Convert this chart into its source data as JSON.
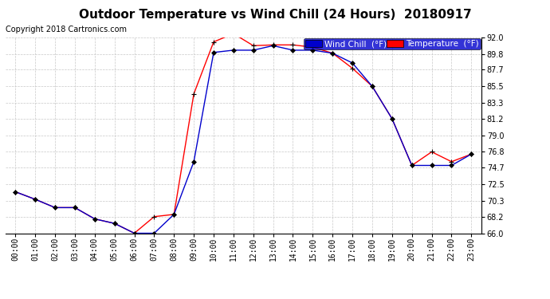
{
  "title": "Outdoor Temperature vs Wind Chill (24 Hours)  20180917",
  "copyright": "Copyright 2018 Cartronics.com",
  "legend_wind_chill": "Wind Chill  (°F)",
  "legend_temperature": "Temperature  (°F)",
  "x_labels": [
    "00:00",
    "01:00",
    "02:00",
    "03:00",
    "04:00",
    "05:00",
    "06:00",
    "07:00",
    "08:00",
    "09:00",
    "10:00",
    "11:00",
    "12:00",
    "13:00",
    "14:00",
    "15:00",
    "16:00",
    "17:00",
    "18:00",
    "19:00",
    "20:00",
    "21:00",
    "22:00",
    "23:00"
  ],
  "temperature": [
    71.5,
    70.5,
    69.4,
    69.4,
    67.9,
    67.3,
    66.0,
    68.2,
    68.5,
    84.5,
    91.4,
    92.5,
    90.9,
    91.0,
    91.0,
    90.7,
    89.9,
    87.9,
    85.5,
    81.2,
    75.0,
    76.8,
    75.5,
    76.5
  ],
  "wind_chill": [
    71.5,
    70.5,
    69.4,
    69.4,
    67.9,
    67.3,
    66.0,
    66.0,
    68.5,
    75.5,
    90.0,
    90.3,
    90.3,
    90.9,
    90.3,
    90.3,
    89.9,
    88.6,
    85.5,
    81.2,
    75.0,
    75.0,
    75.0,
    76.5
  ],
  "temp_color": "#ff0000",
  "wind_color": "#0000cc",
  "marker_color": "#000000",
  "bg_color": "#ffffff",
  "plot_bg_color": "#ffffff",
  "grid_color": "#c8c8c8",
  "ylim": [
    66.0,
    92.0
  ],
  "yticks": [
    66.0,
    68.2,
    70.3,
    72.5,
    74.7,
    76.8,
    79.0,
    81.2,
    83.3,
    85.5,
    87.7,
    89.8,
    92.0
  ],
  "title_fontsize": 11,
  "copyright_fontsize": 7,
  "legend_fontsize": 7.5,
  "tick_fontsize": 7
}
